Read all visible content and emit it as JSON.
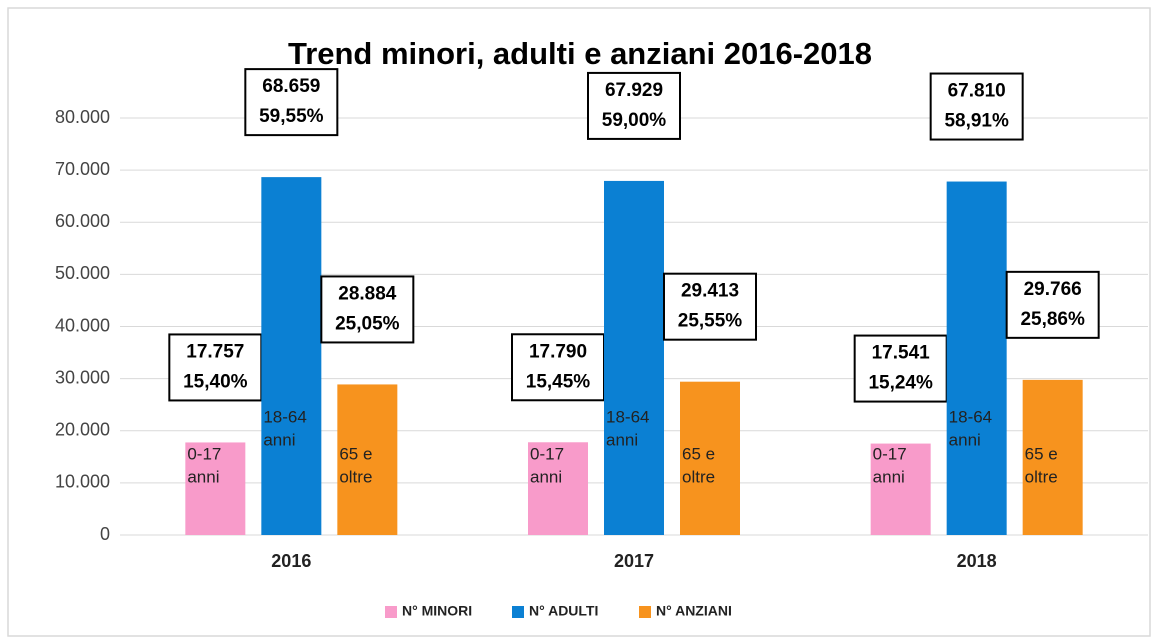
{
  "chart_data": {
    "type": "bar",
    "title": "Trend minori, adulti e anziani 2016-2018",
    "categories": [
      "2016",
      "2017",
      "2018"
    ],
    "series": [
      {
        "name": "N° MINORI",
        "color": "#f89bca",
        "values": [
          17757,
          17790,
          17541
        ],
        "value_labels": [
          "17.757",
          "17.790",
          "17.541"
        ],
        "share_labels": [
          "15,40%",
          "15,45%",
          "15,24%"
        ],
        "inner_label": [
          "0-17",
          "anni"
        ]
      },
      {
        "name": "N° ADULTI",
        "color": "#0b80d3",
        "values": [
          68659,
          67929,
          67810
        ],
        "value_labels": [
          "68.659",
          "67.929",
          "67.810"
        ],
        "share_labels": [
          "59,55%",
          "59,00%",
          "58,91%"
        ],
        "inner_label": [
          "18-64",
          "anni"
        ]
      },
      {
        "name": "N° ANZIANI",
        "color": "#f7931e",
        "values": [
          28884,
          29413,
          29766
        ],
        "value_labels": [
          "28.884",
          "29.413",
          "29.766"
        ],
        "share_labels": [
          "25,05%",
          "25,55%",
          "25,86%"
        ],
        "inner_label": [
          "65 e",
          "oltre"
        ]
      }
    ],
    "ylim": [
      0,
      80000
    ],
    "yticks": [
      0,
      {
        "value": 10000,
        "label": "10.000"
      },
      {
        "value": 20000,
        "label": "20.000"
      },
      {
        "value": 30000,
        "label": "30.000"
      },
      {
        "value": 40000,
        "label": "40.000"
      },
      {
        "value": 50000,
        "label": "50.000"
      },
      {
        "value": 60000,
        "label": "60.000"
      },
      {
        "value": 70000,
        "label": "70.000"
      },
      {
        "value": 80000,
        "label": "80.000"
      }
    ],
    "grid": true,
    "legend": "bottom"
  }
}
